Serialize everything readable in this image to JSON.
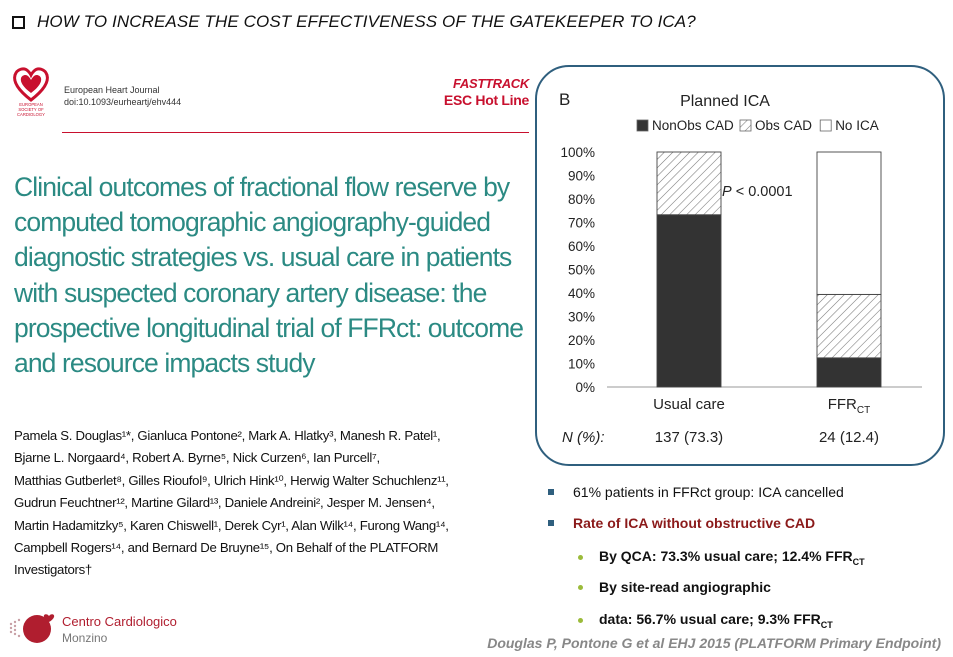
{
  "slide": {
    "title": "HOW TO INCREASE THE COST EFFECTIVENESS OF THE GATEKEEPER TO ICA?"
  },
  "paper": {
    "journal": "European Heart Journal",
    "doi": "doi:10.1093/eurheartj/ehv444",
    "society_logo_text": [
      "EUROPEAN",
      "SOCIETY OF",
      "CARDIOLOGY"
    ],
    "fasttrack": "FASTTRACK",
    "hotline": "ESC Hot Line",
    "title_lines": [
      "Clinical outcomes of fractional flow reserve by",
      "computed tomographic angiography-guided",
      "diagnostic strategies vs. usual care in patients",
      "with suspected coronary artery disease: the",
      "prospective longitudinal trial of FFRct: outcome",
      "and resource impacts study"
    ],
    "author_lines": [
      "Pamela S. Douglas¹*, Gianluca Pontone², Mark A. Hlatky³, Manesh R. Patel¹,",
      "Bjarne L. Norgaard⁴, Robert A. Byrne⁵, Nick Curzen⁶, Ian Purcell⁷,",
      "Matthias Gutberlet⁸, Gilles Rioufol⁹, Ulrich Hink¹⁰, Herwig Walter Schuchlenz¹¹,",
      "Gudrun Feuchtner¹², Martine Gilard¹³, Daniele Andreini², Jesper M. Jensen⁴,",
      "Martin Hadamitzky⁵, Karen Chiswell¹, Derek Cyr¹, Alan Wilk¹⁴, Furong Wang¹⁴,",
      "Campbell Rogers¹⁴, and Bernard De Bruyne¹⁵, On Behalf of the PLATFORM",
      "Investigators†"
    ]
  },
  "institution": {
    "name": "Centro Cardiologico",
    "sub": "Monzino"
  },
  "chart_data": {
    "type": "bar",
    "panel_label": "B",
    "title": "Planned ICA",
    "stacked": true,
    "categories": [
      "Usual care",
      "FFRCT"
    ],
    "category_labels": [
      {
        "main": "Usual care",
        "sub": ""
      },
      {
        "main": "FFR",
        "sub": "CT"
      }
    ],
    "series": [
      {
        "name": "NonObs CAD",
        "values": [
          73.3,
          12.4
        ],
        "color": "#333333",
        "pattern": "solid"
      },
      {
        "name": "Obs CAD",
        "values": [
          26.7,
          27.0
        ],
        "color": "#ffffff",
        "pattern": "hatch"
      },
      {
        "name": "No ICA",
        "values": [
          0,
          60.6
        ],
        "color": "#ffffff",
        "pattern": "none"
      }
    ],
    "ylim": [
      0,
      100
    ],
    "yticks": [
      "0%",
      "10%",
      "20%",
      "30%",
      "40%",
      "50%",
      "60%",
      "70%",
      "80%",
      "90%",
      "100%"
    ],
    "yticks_values": [
      0,
      10,
      20,
      30,
      40,
      50,
      60,
      70,
      80,
      90,
      100
    ],
    "legend_position": "top",
    "annotation": {
      "italic": "P",
      "text": " < 0.0001"
    },
    "n_label": "N (%):",
    "n_values": [
      "137 (73.3)",
      "24 (12.4)"
    ],
    "grid": false
  },
  "bullets": [
    {
      "text": "61% patients in FFRct group: ICA cancelled"
    },
    {
      "text": "Rate of ICA without obstructive CAD"
    },
    {
      "text": "By QCA: 73.3% usual care; 12.4% FFR",
      "sub": "CT"
    },
    {
      "text": "By site-read angiographic"
    },
    {
      "text": "data: 56.7% usual care; 9.3% FFR",
      "sub": "CT"
    }
  ],
  "citation": "Douglas P, Pontone G et al EHJ 2015 (PLATFORM Primary Endpoint)"
}
